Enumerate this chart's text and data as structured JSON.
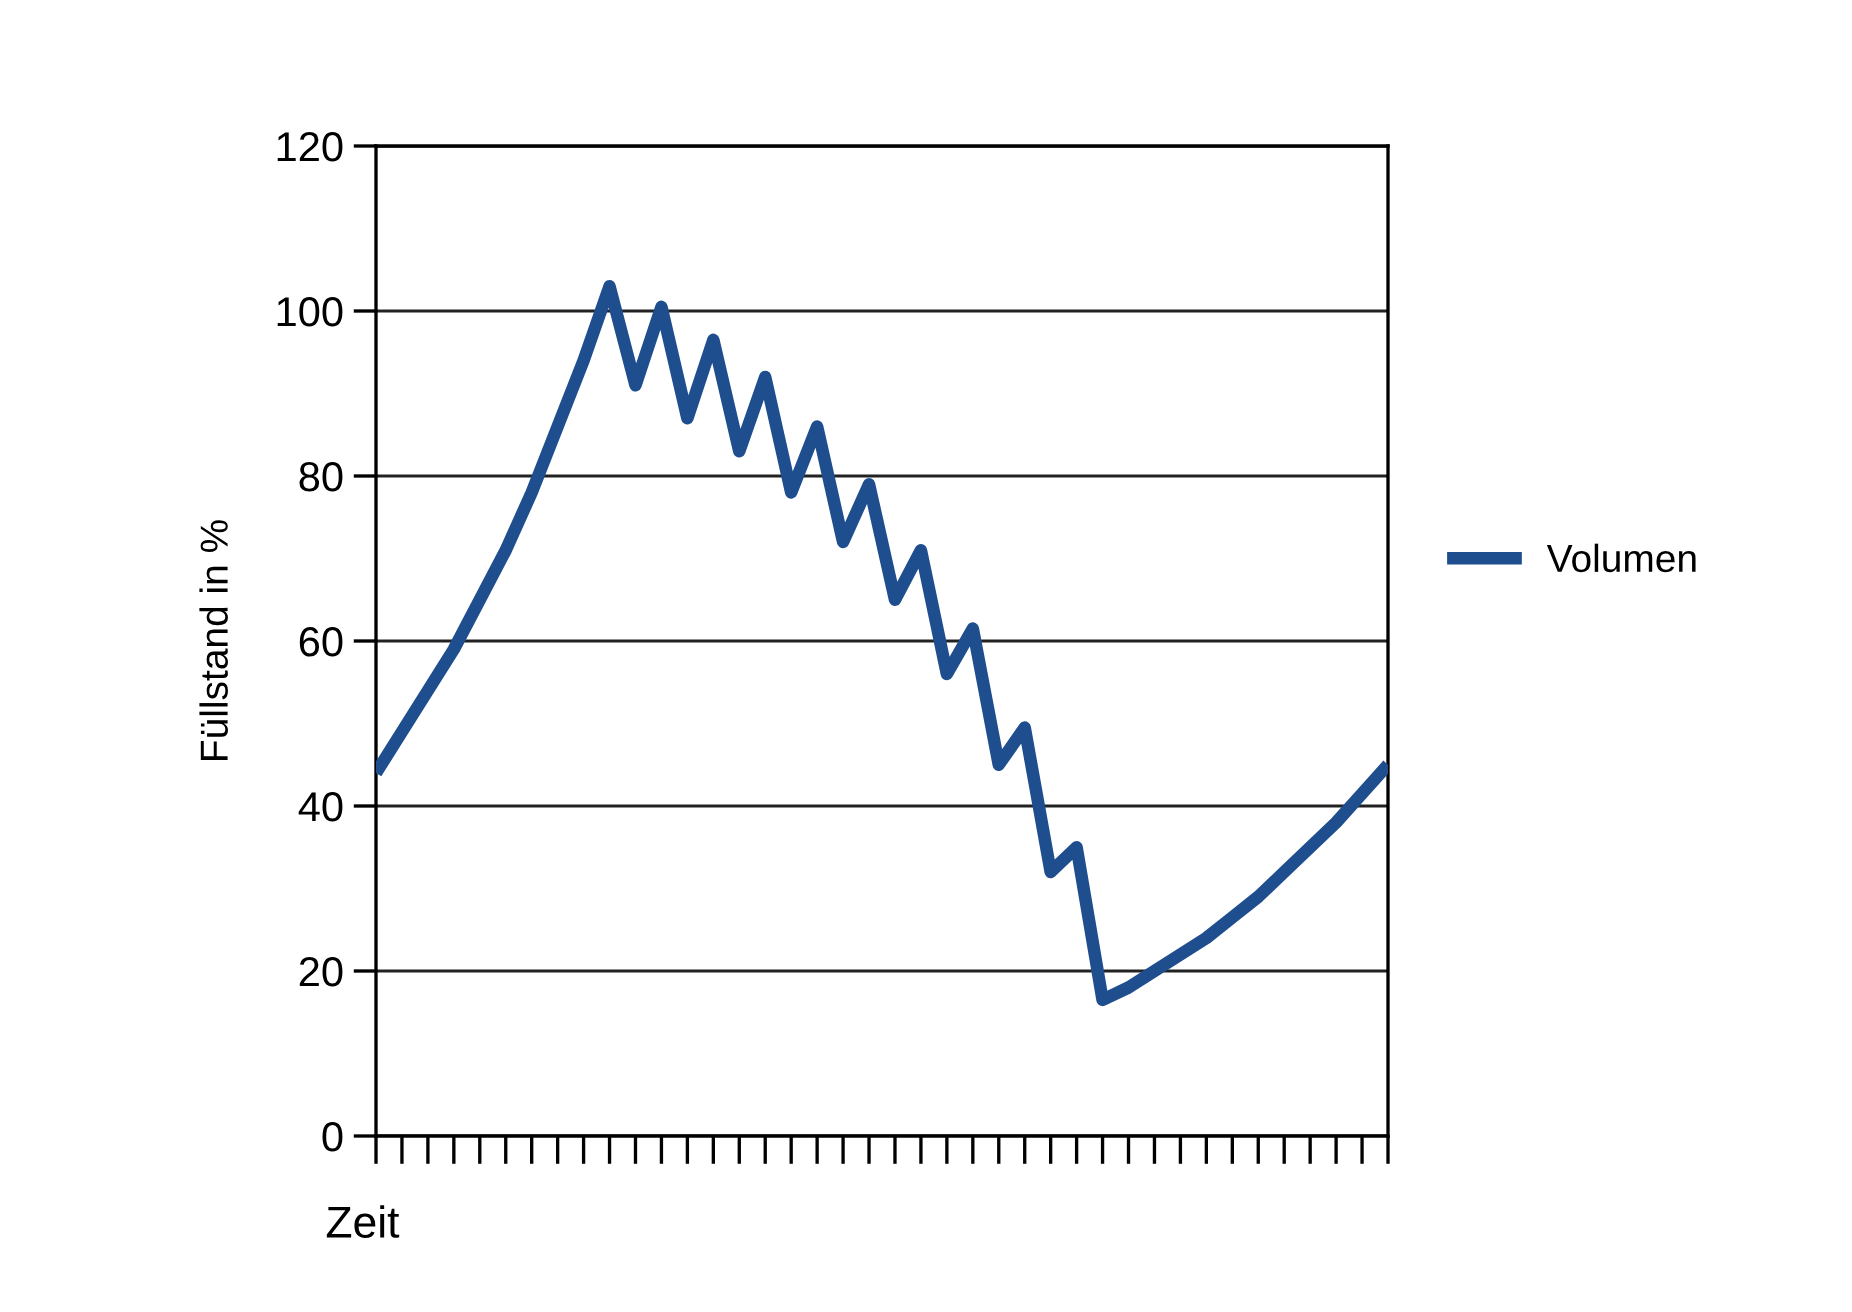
{
  "chart_data": {
    "type": "line",
    "xlabel": "Zeit",
    "ylabel": "Füllstand in %",
    "categories": [
      null,
      null,
      null,
      null,
      null,
      null,
      null,
      null,
      null,
      null,
      null,
      null,
      null,
      null,
      null,
      null,
      null,
      null,
      null,
      null,
      null,
      null,
      null,
      null,
      null,
      null,
      null,
      null,
      null,
      null,
      null,
      null,
      null,
      null,
      null,
      null,
      null,
      null,
      null,
      null
    ],
    "series": [
      {
        "name": "Volumen",
        "color": "#1f4e8f",
        "values": [
          44,
          49,
          54,
          59,
          65,
          71,
          78,
          86,
          94,
          103,
          91,
          100.5,
          87,
          96.5,
          83,
          92,
          78,
          86,
          72,
          79,
          65,
          71,
          56,
          61.5,
          45,
          49.5,
          32,
          35,
          16.5,
          18,
          20,
          22,
          24,
          26.5,
          29,
          32,
          35,
          38,
          41.5,
          45
        ]
      }
    ],
    "ylim": [
      0,
      120
    ],
    "yticks": [
      0,
      20,
      40,
      60,
      80,
      100,
      120
    ],
    "grid": "y",
    "legend": "right",
    "marker": "none",
    "line_style": "solid"
  }
}
